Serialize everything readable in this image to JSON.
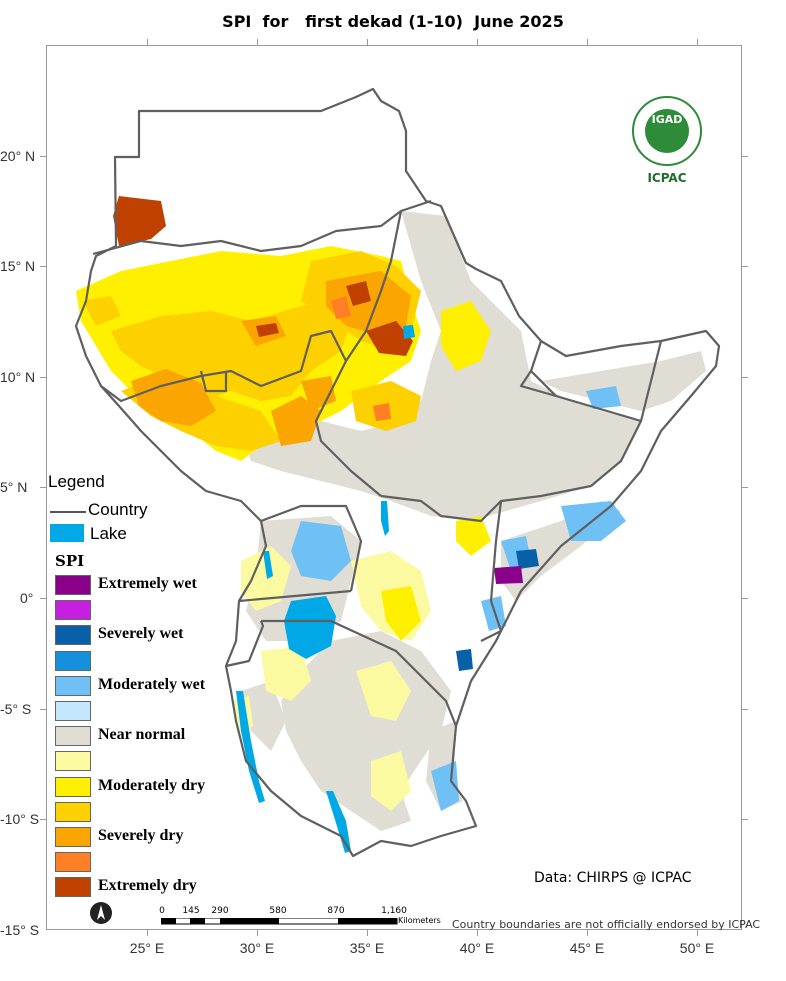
{
  "title": "SPI  for   first dekad (1-10)  June 2025",
  "axes": {
    "latitude_labels": [
      "20° N",
      "15° N",
      "10° N",
      "5° N",
      "0°",
      "-5° S",
      "-10° S",
      "-15° S"
    ],
    "longitude_labels": [
      "25° E",
      "30° E",
      "35° E",
      "40° E",
      "45° E",
      "50° E"
    ]
  },
  "legend": {
    "title": "Legend",
    "country_label": "Country",
    "lake_label": "Lake",
    "spi_title": "SPI",
    "items": [
      {
        "label": "Extremely wet",
        "color": "#8b008b"
      },
      {
        "label": "",
        "color": "#c71fe0"
      },
      {
        "label": "Severely wet",
        "color": "#0860a8"
      },
      {
        "label": "",
        "color": "#1490dc"
      },
      {
        "label": "Moderately wet",
        "color": "#6ec0f5"
      },
      {
        "label": "",
        "color": "#c4e8fb"
      },
      {
        "label": "Near normal",
        "color": "#e0ddd5"
      },
      {
        "label": "",
        "color": "#fcfaa0"
      },
      {
        "label": "Moderately dry",
        "color": "#fff000"
      },
      {
        "label": "",
        "color": "#fdd000"
      },
      {
        "label": "Severely dry",
        "color": "#fba500"
      },
      {
        "label": "",
        "color": "#ff7f27"
      },
      {
        "label": "Extremely dry",
        "color": "#c04000"
      }
    ]
  },
  "credit": "Data: CHIRPS @ ICPAC",
  "disclaimer": "Country boundaries are not officially endorsed by ICPAC",
  "scale_bar": {
    "ticks": [
      "0",
      "145",
      "290",
      "580",
      "870",
      "1,160"
    ],
    "unit": "Kilometers"
  },
  "logo": {
    "line1": "IGAD",
    "line2": "ICPAC"
  },
  "colors": {
    "lake": "#00a9e6",
    "boundary": "#5f5f5f",
    "frame": "#9a9a9a"
  }
}
